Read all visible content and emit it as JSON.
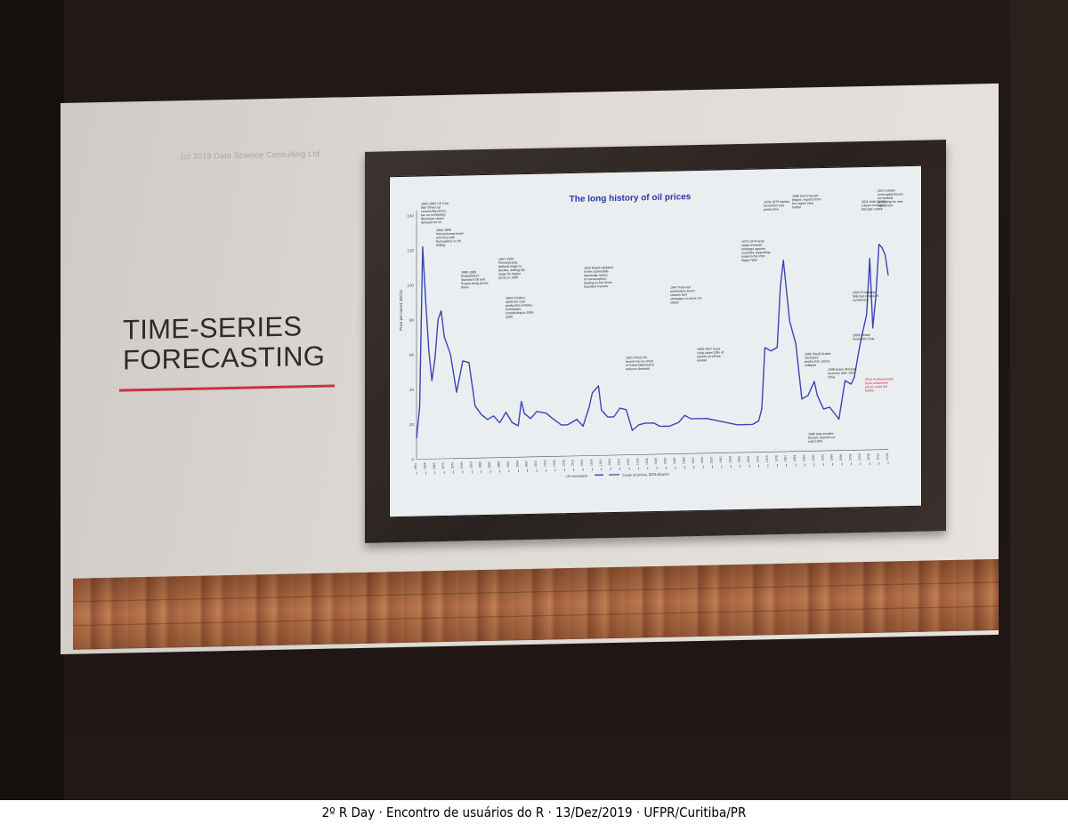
{
  "slide": {
    "copyright": "(c) 2019 Data Science Consulting Ltd",
    "title_line1": "TIME-SERIES",
    "title_line2": "FORECASTING"
  },
  "caption": "2º R Day · Encontro de usuários do R · 13/Dez/2019 · UFPR/Curitiba/PR",
  "colors": {
    "screen": "#dedad6",
    "accent_underline": "#c8343d",
    "line": "#3a45b8",
    "chart_title": "#2a36b0",
    "annotation_red": "#c8283a"
  },
  "chart_data": {
    "type": "line",
    "title": "The long history of oil prices",
    "ylabel": "Price per barrel, $2014",
    "xlabel": "",
    "ylim": [
      0,
      140
    ],
    "yticks": [
      0,
      20,
      40,
      60,
      80,
      100,
      120,
      140
    ],
    "legend": [
      "US recession",
      "Crude oil prices, $2014/barrel"
    ],
    "legend_position": "bottom",
    "grid": false,
    "series": [
      {
        "name": "Crude oil prices, $2014/barrel",
        "x": [
          1861,
          1862,
          1863,
          1864,
          1865,
          1866,
          1867,
          1868,
          1869,
          1870,
          1872,
          1874,
          1876,
          1878,
          1880,
          1882,
          1884,
          1886,
          1888,
          1890,
          1892,
          1894,
          1895,
          1896,
          1898,
          1900,
          1903,
          1905,
          1908,
          1910,
          1913,
          1915,
          1917,
          1918,
          1920,
          1921,
          1923,
          1925,
          1927,
          1929,
          1931,
          1933,
          1935,
          1938,
          1940,
          1943,
          1946,
          1948,
          1950,
          1955,
          1960,
          1965,
          1970,
          1972,
          1973,
          1974,
          1976,
          1978,
          1979,
          1980,
          1982,
          1984,
          1986,
          1988,
          1990,
          1991,
          1993,
          1995,
          1998,
          2000,
          2002,
          2003,
          2005,
          2007,
          2008,
          2009,
          2010,
          2011,
          2012,
          2013,
          2014
        ],
        "values": [
          12,
          30,
          122,
          90,
          62,
          45,
          58,
          80,
          85,
          70,
          60,
          38,
          56,
          55,
          30,
          25,
          22,
          24,
          20,
          26,
          20,
          18,
          32,
          25,
          22,
          26,
          25,
          22,
          18,
          18,
          21,
          17,
          28,
          36,
          40,
          26,
          22,
          22,
          27,
          26,
          14,
          17,
          18,
          18,
          16,
          16,
          18,
          22,
          20,
          20,
          18,
          16,
          16,
          18,
          25,
          60,
          58,
          60,
          95,
          110,
          75,
          62,
          30,
          32,
          40,
          32,
          24,
          25,
          18,
          40,
          38,
          42,
          62,
          78,
          110,
          70,
          88,
          118,
          116,
          112,
          100
        ]
      }
    ],
    "annotations": [
      {
        "x": 1861,
        "label": "1862-1865 US Civil War drives up commodity prices; tax on competing illuminant raises demand for oil"
      },
      {
        "x": 1866,
        "label": "1865-1890 Pennsylvania boom and bust with fluctuations in US drilling"
      },
      {
        "x": 1880,
        "label": "1880-1900 Rockefeller's Standard Oil and Russia bring prices down"
      },
      {
        "x": 1890,
        "label": "1897-1930 Pennsylvania deflects begin to decline, setting the stage for higher prices in 1900"
      },
      {
        "x": 1894,
        "label": "1894 Cholera epidemic cuts production in Baku, Azerbaijan, contributing to 1895 spike"
      },
      {
        "x": 1920,
        "label": "1920 Rapid adoption of the automobile drastically raises oil consumption, leading to the Great Gasoline Famine"
      },
      {
        "x": 1931,
        "label": "1931 Prices hit record low as onset of Great Depression reduces demand"
      },
      {
        "x": 1947,
        "label": "1947 Post-war automotive boom creates fuel shortages in some US states"
      },
      {
        "x": 1956,
        "label": "1956-1957 Suez crisis takes 10% of world's oil off the market"
      },
      {
        "x": 1973,
        "label": "1973-1974 Arab states institute embargo against countries supporting Israel in the Yom Kippur War"
      },
      {
        "x": 1978,
        "label": "1978-1979 Iranian revolution cuts production"
      },
      {
        "x": 1980,
        "label": "1980 Iran-Iraq war begins; exports from the region slow further"
      },
      {
        "x": 1986,
        "label": "1986 Saudi Arabia increases production, prices collapse"
      },
      {
        "x": 1990,
        "label": "1990 Iraq invades Kuwait; exports cut until 1994"
      },
      {
        "x": 1998,
        "label": "1998 Asian demand recovery after 1997 crisis"
      },
      {
        "x": 2003,
        "label": "2003 Production falls due to lack of investment"
      },
      {
        "x": 2008,
        "label": "2008 Global Financial Crisis"
      },
      {
        "x": 2011,
        "label": "2011 Arab Spring; Libyan civil war disrupts output"
      },
      {
        "x": 2014,
        "label": "2014 Global oversupply leaves oil markets searching for new equilibrium"
      },
      {
        "x": 2014,
        "label": "2014 Fundamentals have weakened; prices could fall further",
        "color": "red"
      }
    ]
  }
}
